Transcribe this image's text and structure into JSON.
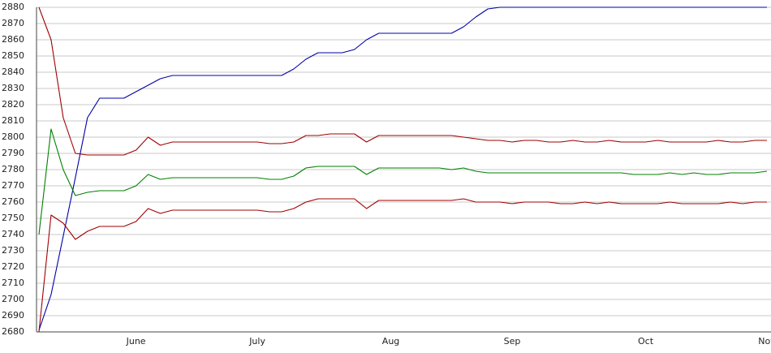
{
  "chart_data": {
    "type": "line",
    "categories": [
      null,
      null,
      null,
      null,
      null,
      null,
      null,
      null,
      "June",
      null,
      null,
      null,
      null,
      null,
      null,
      null,
      null,
      null,
      "July",
      null,
      null,
      null,
      null,
      null,
      null,
      null,
      null,
      null,
      null,
      "Aug",
      null,
      null,
      null,
      null,
      null,
      null,
      null,
      null,
      null,
      "Sep",
      null,
      null,
      null,
      null,
      null,
      null,
      null,
      null,
      null,
      null,
      "Oct",
      null,
      null,
      null,
      null,
      null,
      null,
      null,
      null,
      null,
      "Nov"
    ],
    "series": [
      {
        "color": "#0000a8",
        "values": [
          2681,
          2703,
          2739,
          2775,
          2812,
          2824,
          2824,
          2824,
          2828,
          2832,
          2836,
          2838,
          2838,
          2838,
          2838,
          2838,
          2838,
          2838,
          2838,
          2838,
          2838,
          2842,
          2848,
          2852,
          2852,
          2852,
          2854,
          2860,
          2864,
          2864,
          2864,
          2864,
          2864,
          2864,
          2864,
          2868,
          2874,
          2879,
          2880,
          2880,
          2880,
          2880,
          2880,
          2880,
          2880,
          2880,
          2880,
          2880,
          2880,
          2880,
          2880,
          2880,
          2880,
          2880,
          2880,
          2880,
          2880,
          2880,
          2880,
          2880,
          2880
        ]
      },
      {
        "color": "#a00000",
        "values": [
          2880,
          2860,
          2812,
          2790,
          2789,
          2789,
          2789,
          2789,
          2792,
          2800,
          2795,
          2797,
          2797,
          2797,
          2797,
          2797,
          2797,
          2797,
          2797,
          2796,
          2796,
          2797,
          2801,
          2801,
          2802,
          2802,
          2802,
          2797,
          2801,
          2801,
          2801,
          2801,
          2801,
          2801,
          2801,
          2800,
          2799,
          2798,
          2798,
          2797,
          2798,
          2798,
          2797,
          2797,
          2798,
          2797,
          2797,
          2798,
          2797,
          2797,
          2797,
          2798,
          2797,
          2797,
          2797,
          2797,
          2798,
          2797,
          2797,
          2798,
          2798
        ]
      },
      {
        "color": "#008000",
        "values": [
          2740,
          2805,
          2780,
          2764,
          2766,
          2767,
          2767,
          2767,
          2770,
          2777,
          2774,
          2775,
          2775,
          2775,
          2775,
          2775,
          2775,
          2775,
          2775,
          2774,
          2774,
          2776,
          2781,
          2782,
          2782,
          2782,
          2782,
          2777,
          2781,
          2781,
          2781,
          2781,
          2781,
          2781,
          2780,
          2781,
          2779,
          2778,
          2778,
          2778,
          2778,
          2778,
          2778,
          2778,
          2778,
          2778,
          2778,
          2778,
          2778,
          2777,
          2777,
          2777,
          2778,
          2777,
          2778,
          2777,
          2777,
          2778,
          2778,
          2778,
          2779
        ]
      },
      {
        "color": "#a00000",
        "values": [
          2680,
          2752,
          2747,
          2737,
          2742,
          2745,
          2745,
          2745,
          2748,
          2756,
          2753,
          2755,
          2755,
          2755,
          2755,
          2755,
          2755,
          2755,
          2755,
          2754,
          2754,
          2756,
          2760,
          2762,
          2762,
          2762,
          2762,
          2756,
          2761,
          2761,
          2761,
          2761,
          2761,
          2761,
          2761,
          2762,
          2760,
          2760,
          2760,
          2759,
          2760,
          2760,
          2760,
          2759,
          2759,
          2760,
          2759,
          2760,
          2759,
          2759,
          2759,
          2759,
          2760,
          2759,
          2759,
          2759,
          2759,
          2760,
          2759,
          2760,
          2760
        ]
      }
    ],
    "ylim": [
      2680,
      2880
    ],
    "yticks": [
      2680,
      2690,
      2700,
      2710,
      2720,
      2730,
      2740,
      2750,
      2760,
      2770,
      2780,
      2790,
      2800,
      2810,
      2820,
      2830,
      2840,
      2850,
      2860,
      2870,
      2880
    ],
    "grid": true
  }
}
